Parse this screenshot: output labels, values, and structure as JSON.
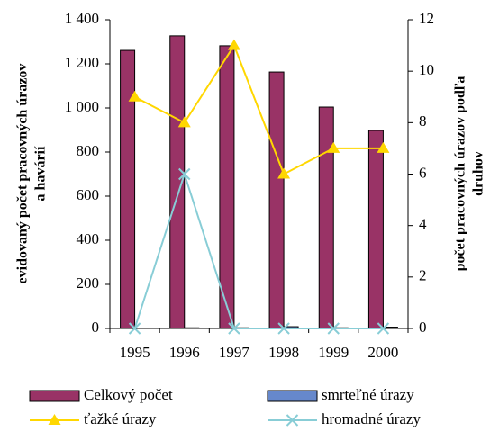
{
  "chart_data": {
    "type": "bar-line",
    "ylabel": [
      "evidovaný počet pracovných úrazov",
      "a havárií"
    ],
    "y2label": [
      "počet pracovných úrazov podľa",
      "druhov"
    ],
    "categories": [
      "1995",
      "1996",
      "1997",
      "1998",
      "1999",
      "2000"
    ],
    "ylim": [
      0,
      1400
    ],
    "yticks": [
      0,
      200,
      400,
      600,
      800,
      {
        "value": 1000,
        "label": "1 000"
      },
      {
        "value": 1200,
        "label": "1 200"
      },
      {
        "value": 1400,
        "label": "1 400"
      }
    ],
    "y2lim": [
      0,
      12
    ],
    "y2ticks": [
      0,
      2,
      4,
      6,
      8,
      10,
      12
    ],
    "series": [
      {
        "name": "Celkový počet",
        "kind": "bar",
        "color": "#993366",
        "values": [
          1261,
          1327,
          1282,
          1163,
          1004,
          898
        ]
      },
      {
        "name": "smrteľné úrazy",
        "kind": "bar",
        "color": "#6688cc",
        "values": [
          2,
          3,
          3,
          8,
          3,
          6
        ]
      },
      {
        "name": "ťažké úrazy",
        "kind": "line",
        "marker": "triangle",
        "axis": "y2",
        "color": "#ffd700",
        "values": [
          9,
          8,
          11,
          6,
          7,
          7
        ]
      },
      {
        "name": "hromadné úrazy",
        "kind": "line",
        "marker": "x",
        "axis": "y2",
        "color": "#88cdd6",
        "values": [
          0,
          6,
          0,
          0,
          0,
          0
        ]
      }
    ]
  }
}
